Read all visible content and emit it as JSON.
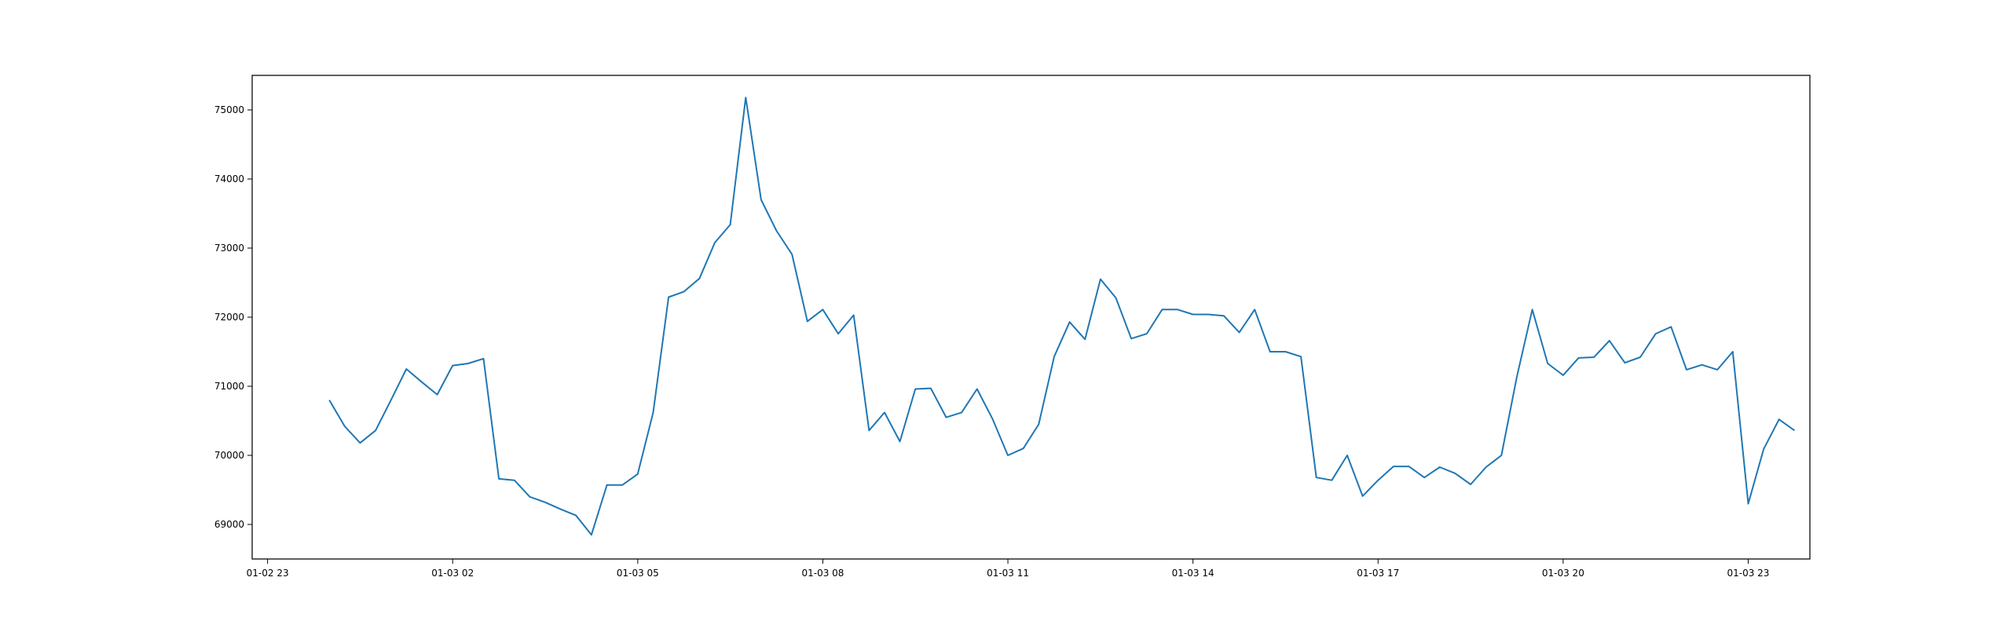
{
  "chart_data": {
    "type": "line",
    "title": "",
    "xlabel": "",
    "ylabel": "",
    "x_range": [
      "2024-01-02 22:45",
      "2024-01-04 00:00"
    ],
    "ylim": [
      68500,
      75500
    ],
    "grid": false,
    "legend": "none",
    "colors": {
      "line": "#1f77b4",
      "axes": "#000000",
      "background": "#ffffff"
    },
    "x_ticks": [
      {
        "value": "2024-01-02 23:00",
        "label": "01-02 23"
      },
      {
        "value": "2024-01-03 02:00",
        "label": "01-03 02"
      },
      {
        "value": "2024-01-03 05:00",
        "label": "01-03 05"
      },
      {
        "value": "2024-01-03 08:00",
        "label": "01-03 08"
      },
      {
        "value": "2024-01-03 11:00",
        "label": "01-03 11"
      },
      {
        "value": "2024-01-03 14:00",
        "label": "01-03 14"
      },
      {
        "value": "2024-01-03 17:00",
        "label": "01-03 17"
      },
      {
        "value": "2024-01-03 20:00",
        "label": "01-03 20"
      },
      {
        "value": "2024-01-03 23:00",
        "label": "01-03 23"
      }
    ],
    "y_ticks": [
      {
        "value": 69000,
        "label": "69000"
      },
      {
        "value": 70000,
        "label": "70000"
      },
      {
        "value": 71000,
        "label": "71000"
      },
      {
        "value": 72000,
        "label": "72000"
      },
      {
        "value": 73000,
        "label": "73000"
      },
      {
        "value": 74000,
        "label": "74000"
      },
      {
        "value": 75000,
        "label": "75000"
      }
    ],
    "series": [
      {
        "x": [
          "2024-01-03 00:00",
          "2024-01-03 00:15",
          "2024-01-03 00:30",
          "2024-01-03 00:45",
          "2024-01-03 01:00",
          "2024-01-03 01:15",
          "2024-01-03 01:30",
          "2024-01-03 01:45",
          "2024-01-03 02:00",
          "2024-01-03 02:15",
          "2024-01-03 02:30",
          "2024-01-03 02:45",
          "2024-01-03 03:00",
          "2024-01-03 03:15",
          "2024-01-03 03:30",
          "2024-01-03 03:45",
          "2024-01-03 04:00",
          "2024-01-03 04:15",
          "2024-01-03 04:30",
          "2024-01-03 04:45",
          "2024-01-03 05:00",
          "2024-01-03 05:15",
          "2024-01-03 05:30",
          "2024-01-03 05:45",
          "2024-01-03 06:00",
          "2024-01-03 06:15",
          "2024-01-03 06:30",
          "2024-01-03 06:45",
          "2024-01-03 07:00",
          "2024-01-03 07:15",
          "2024-01-03 07:30",
          "2024-01-03 07:45",
          "2024-01-03 08:00",
          "2024-01-03 08:15",
          "2024-01-03 08:30",
          "2024-01-03 08:45",
          "2024-01-03 09:00",
          "2024-01-03 09:15",
          "2024-01-03 09:30",
          "2024-01-03 09:45",
          "2024-01-03 10:00",
          "2024-01-03 10:15",
          "2024-01-03 10:30",
          "2024-01-03 10:45",
          "2024-01-03 11:00",
          "2024-01-03 11:15",
          "2024-01-03 11:30",
          "2024-01-03 11:45",
          "2024-01-03 12:00",
          "2024-01-03 12:15",
          "2024-01-03 12:30",
          "2024-01-03 12:45",
          "2024-01-03 13:00",
          "2024-01-03 13:15",
          "2024-01-03 13:30",
          "2024-01-03 13:45",
          "2024-01-03 14:00",
          "2024-01-03 14:15",
          "2024-01-03 14:30",
          "2024-01-03 14:45",
          "2024-01-03 15:00",
          "2024-01-03 15:15",
          "2024-01-03 15:30",
          "2024-01-03 15:45",
          "2024-01-03 16:00",
          "2024-01-03 16:15",
          "2024-01-03 16:30",
          "2024-01-03 16:45",
          "2024-01-03 17:00",
          "2024-01-03 17:15",
          "2024-01-03 17:30",
          "2024-01-03 17:45",
          "2024-01-03 18:00",
          "2024-01-03 18:15",
          "2024-01-03 18:30",
          "2024-01-03 18:45",
          "2024-01-03 19:00",
          "2024-01-03 19:15",
          "2024-01-03 19:30",
          "2024-01-03 19:45",
          "2024-01-03 20:00",
          "2024-01-03 20:15",
          "2024-01-03 20:30",
          "2024-01-03 20:45",
          "2024-01-03 21:00",
          "2024-01-03 21:15",
          "2024-01-03 21:30",
          "2024-01-03 21:45",
          "2024-01-03 22:00",
          "2024-01-03 22:15",
          "2024-01-03 22:30",
          "2024-01-03 22:45",
          "2024-01-03 23:00",
          "2024-01-03 23:15",
          "2024-01-03 23:30",
          "2024-01-03 23:45"
        ],
        "values": [
          70800,
          70420,
          70180,
          70360,
          70800,
          71250,
          71060,
          70880,
          71300,
          71330,
          71400,
          69660,
          69640,
          69400,
          69320,
          69220,
          69130,
          68850,
          69570,
          69570,
          69730,
          70620,
          72290,
          72370,
          72560,
          73080,
          73340,
          75180,
          73700,
          73250,
          72910,
          71940,
          72110,
          71760,
          72030,
          70360,
          70620,
          70200,
          70960,
          70970,
          70550,
          70620,
          70960,
          70530,
          70000,
          70100,
          70450,
          71430,
          71930,
          71680,
          72550,
          72280,
          71690,
          71760,
          72110,
          72110,
          72040,
          72040,
          72020,
          71780,
          72110,
          71500,
          71500,
          71430,
          69680,
          69640,
          70000,
          69410,
          69640,
          69840,
          69840,
          69680,
          69830,
          69740,
          69580,
          69830,
          70000,
          71140,
          72110,
          71330,
          71160,
          71410,
          71420,
          71660,
          71340,
          71420,
          71760,
          71860,
          71240,
          71310,
          71240,
          71500,
          69300,
          70090,
          70520,
          70360
        ]
      }
    ]
  }
}
